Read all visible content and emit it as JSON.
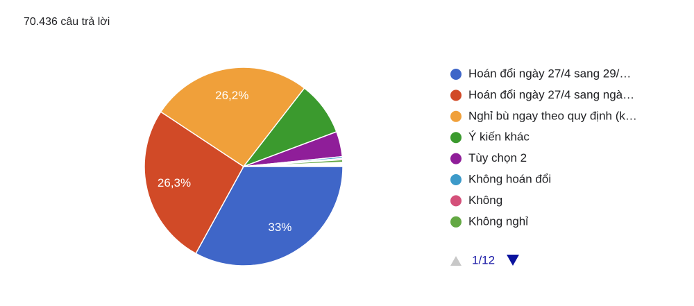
{
  "header": {
    "title": "70.436 câu trả lời"
  },
  "chart_data": {
    "type": "pie",
    "categories": [
      "Hoán đổi ngày 27/4 sang 29/…",
      "Hoán đổi ngày 27/4 sang ngà…",
      "Nghỉ bù ngay theo quy định (k…",
      "Ý kiến khác",
      "Tùy chọn 2",
      "Không hoán đổi",
      "Không",
      "Không nghỉ"
    ],
    "values": [
      33,
      26.3,
      26.2,
      8.8,
      4.1,
      0.3,
      0.2,
      0.4
    ],
    "value_labels": [
      "33%",
      "26,3%",
      "26,2%",
      null,
      null,
      null,
      null,
      null
    ],
    "colors": [
      "#3f66c8",
      "#d14a27",
      "#f0a03a",
      "#3b9a2e",
      "#8f1e99",
      "#3d9ac9",
      "#d4507a",
      "#63a843"
    ]
  },
  "pager": "1/12"
}
